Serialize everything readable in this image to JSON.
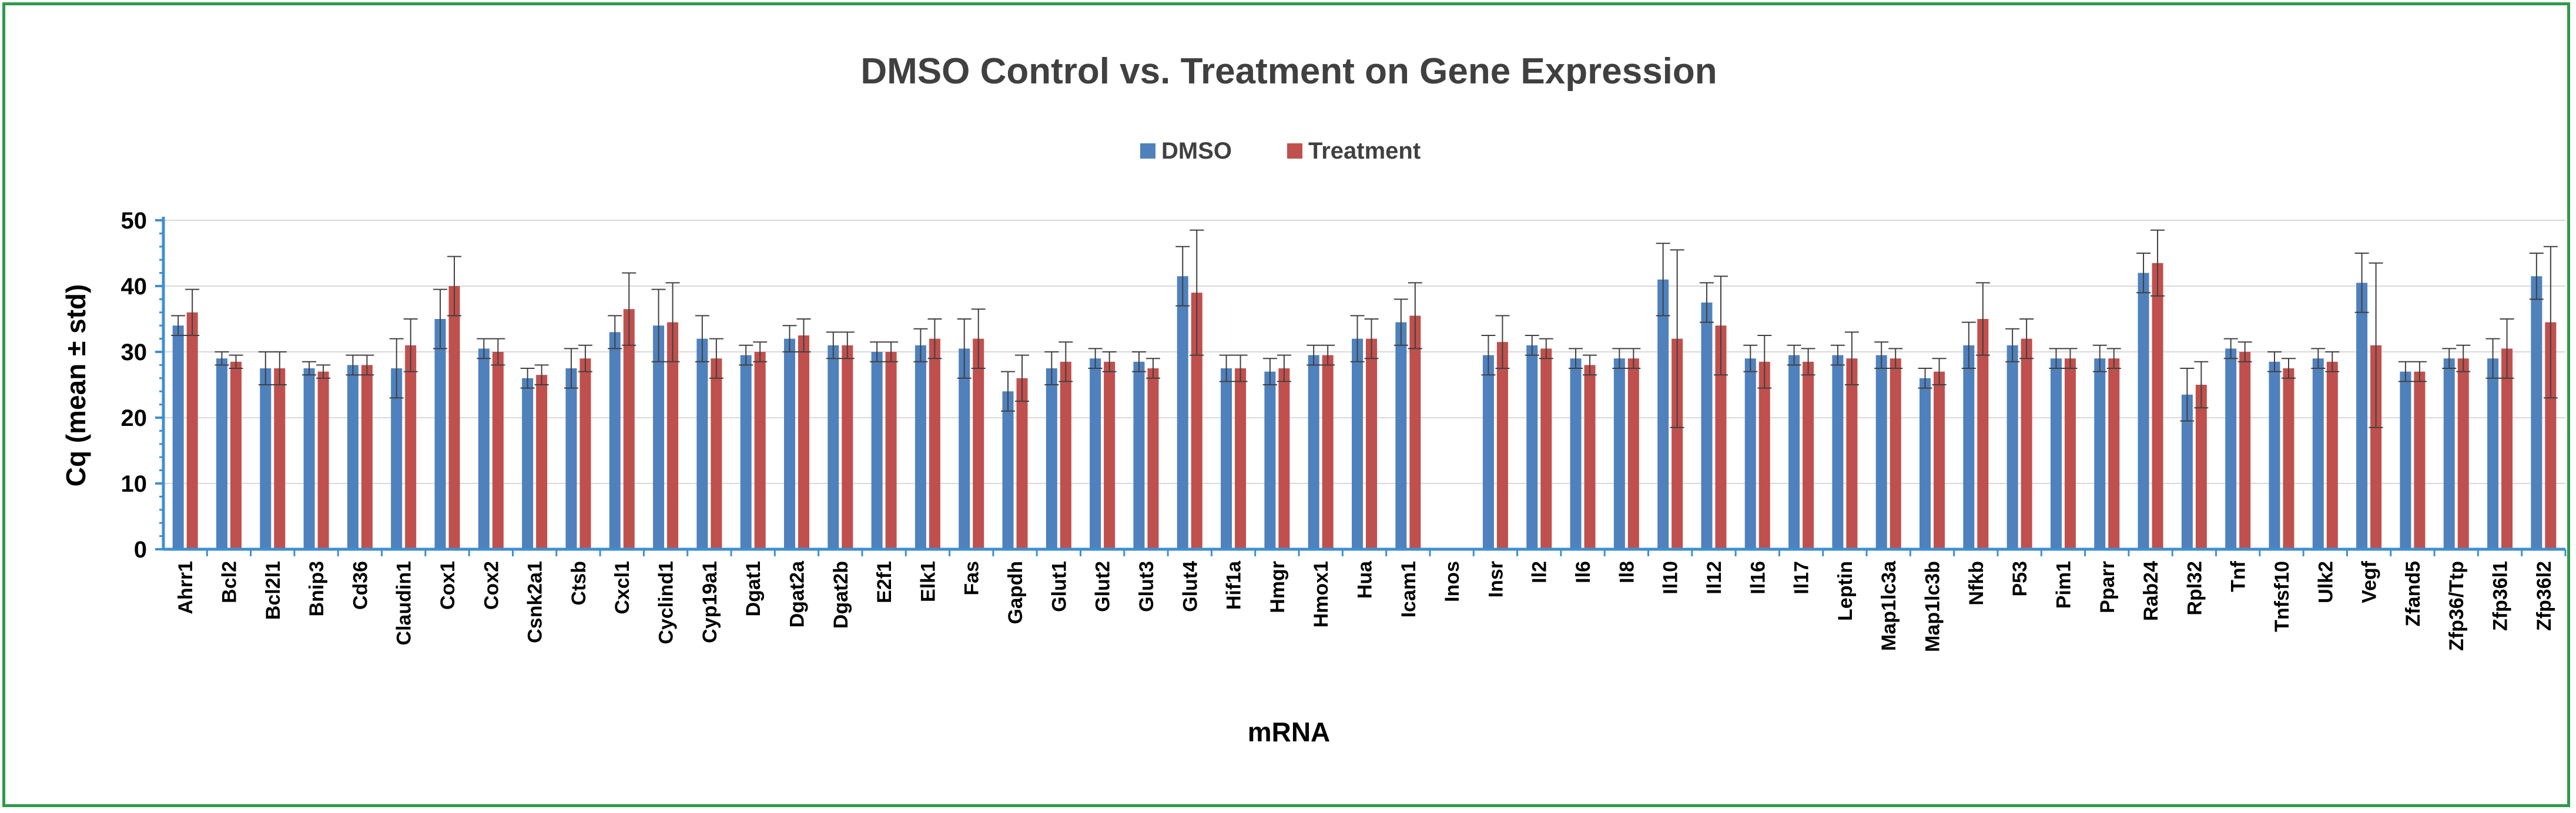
{
  "chart_data": {
    "type": "bar",
    "title": "DMSO Control vs. Treatment on Gene Expression",
    "xlabel": "mRNA",
    "ylabel": "Cq (mean ± std)",
    "ylim": [
      0,
      50
    ],
    "yticks": [
      0,
      10,
      20,
      30,
      40,
      50
    ],
    "legend_position": "top-center",
    "categories": [
      "Ahrr1",
      "Bcl2",
      "Bcl2l1",
      "Bnip3",
      "Cd36",
      "Claudin1",
      "Cox1",
      "Cox2",
      "Csnk2a1",
      "Ctsb",
      "Cxcl1",
      "Cyclind1",
      "Cyp19a1",
      "Dgat1",
      "Dgat2a",
      "Dgat2b",
      "E2f1",
      "Elk1",
      "Fas",
      "Gapdh",
      "Glut1",
      "Glut2",
      "Glut3",
      "Glut4",
      "Hif1a",
      "Hmgr",
      "Hmox1",
      "Hua",
      "Icam1",
      "Inos",
      "Insr",
      "Il2",
      "Il6",
      "Il8",
      "Il10",
      "Il12",
      "Il16",
      "Il17",
      "Leptin",
      "Map1lc3a",
      "Map1lc3b",
      "Nfkb",
      "P53",
      "Pim1",
      "Pparr",
      "Rab24",
      "Rpl32",
      "Tnf",
      "Tnfsf10",
      "Ulk2",
      "Vegf",
      "Zfand5",
      "Zfp36/Ttp",
      "Zfp36l1",
      "Zfp36l2"
    ],
    "series": [
      {
        "name": "DMSO",
        "color": "#4f81bd",
        "values": [
          34,
          29,
          27.5,
          27.5,
          28,
          27.5,
          35,
          30.5,
          26,
          27.5,
          33,
          34,
          32,
          29.5,
          32,
          31,
          30,
          31,
          30.5,
          24,
          27.5,
          29,
          28.5,
          41.5,
          27.5,
          27,
          29.5,
          32,
          34.5,
          0,
          29.5,
          31,
          29,
          29,
          41,
          37.5,
          29,
          29.5,
          29.5,
          29.5,
          26,
          31,
          31,
          29,
          29,
          42,
          23.5,
          30.5,
          28.5,
          29,
          40.5,
          27,
          29,
          29,
          41.5
        ],
        "errors": [
          1.5,
          1,
          2.5,
          1,
          1.5,
          4.5,
          4.5,
          1.5,
          1.5,
          3,
          2.5,
          5.5,
          3.5,
          1.5,
          2,
          2,
          1.5,
          2.5,
          4.5,
          3,
          2.5,
          1.5,
          1.5,
          4.5,
          2,
          2,
          1.5,
          3.5,
          3.5,
          0,
          3,
          1.5,
          1.5,
          1.5,
          5.5,
          3,
          2,
          1.5,
          1.5,
          2,
          1.5,
          3.5,
          2.5,
          1.5,
          2,
          3,
          4,
          1.5,
          1.5,
          1.5,
          4.5,
          1.5,
          1.5,
          3,
          3.5
        ]
      },
      {
        "name": "Treatment",
        "color": "#c0504d",
        "values": [
          36,
          28.5,
          27.5,
          27,
          28,
          31,
          40,
          30,
          26.5,
          29,
          36.5,
          34.5,
          29,
          30,
          32.5,
          31,
          30,
          32,
          32,
          26,
          28.5,
          28.5,
          27.5,
          39,
          27.5,
          27.5,
          29.5,
          32,
          35.5,
          0,
          31.5,
          30.5,
          28,
          29,
          32,
          34,
          28.5,
          28.5,
          29,
          29,
          27,
          35,
          32,
          29,
          29,
          43.5,
          25,
          30,
          27.5,
          28.5,
          31,
          27,
          29,
          30.5,
          34.5
        ],
        "errors": [
          3.5,
          1,
          2.5,
          1,
          1.5,
          4,
          4.5,
          2,
          1.5,
          2,
          5.5,
          6,
          3,
          1.5,
          2.5,
          2,
          1.5,
          3,
          4.5,
          3.5,
          3,
          1.5,
          1.5,
          9.5,
          2,
          2,
          1.5,
          3,
          5,
          0,
          4,
          1.5,
          1.5,
          1.5,
          13.5,
          7.5,
          4,
          2,
          4,
          1.5,
          2,
          5.5,
          3,
          1.5,
          1.5,
          5,
          3.5,
          1.5,
          1.5,
          1.5,
          12.5,
          1.5,
          2,
          4.5,
          11.5
        ]
      }
    ]
  }
}
